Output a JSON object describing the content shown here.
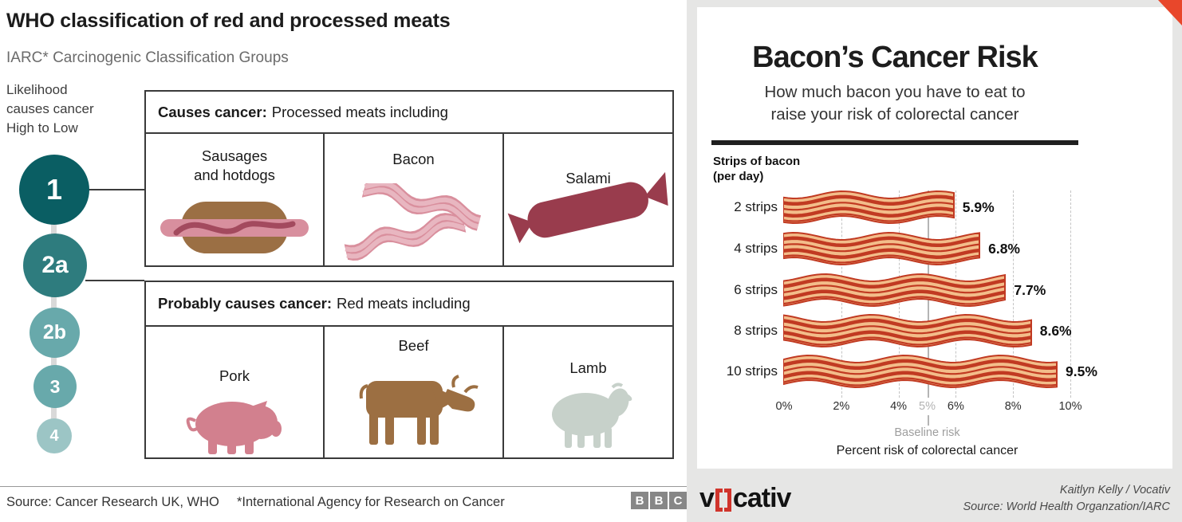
{
  "left_panel": {
    "title": "WHO classification of red and processed meats",
    "subtitle": "IARC* Carcinogenic Classification Groups",
    "likelihood_note": "Likelihood\ncauses cancer\nHigh to Low",
    "groups": [
      "1",
      "2a",
      "2b",
      "3",
      "4"
    ],
    "boxes": [
      {
        "header_bold": "Causes cancer:",
        "header_rest": "Processed meats including",
        "cells": [
          {
            "label": "Sausages\nand hotdogs",
            "icon": "hotdog-icon"
          },
          {
            "label": "Bacon",
            "icon": "bacon-icon"
          },
          {
            "label": "Salami",
            "icon": "salami-icon"
          }
        ]
      },
      {
        "header_bold": "Probably causes cancer:",
        "header_rest": "Red meats including",
        "cells": [
          {
            "label": "Pork",
            "icon": "pig-icon"
          },
          {
            "label": "Beef",
            "icon": "cow-icon"
          },
          {
            "label": "Lamb",
            "icon": "sheep-icon"
          }
        ]
      }
    ],
    "footer": {
      "source": "Source: Cancer Research UK, WHO",
      "note": "*International Agency for Research on Cancer",
      "logo_letters": [
        "B",
        "B",
        "C"
      ]
    }
  },
  "right_panel": {
    "title": "Bacon’s Cancer Risk",
    "subtitle": "How much bacon you have to eat to\nraise your risk of colorectal cancer",
    "logo_text_v": "v",
    "logo_text_rest": "cativ",
    "credit_line1": "Kaitlyn Kelly / Vocativ",
    "credit_line2": "Source: World Health Organzation/IARC"
  },
  "colors": {
    "accent_red": "#e8472b",
    "vocativ_red": "#d0342c",
    "bacon_fill": "#f3bd8a",
    "bacon_stripe": "#c13a22",
    "pink_bacon_fill": "#d98f9d",
    "pink_bacon_stripe": "#e8b6c0",
    "baseline_gray": "#b5b5b5",
    "group_colors": [
      "#0a5e63",
      "#2e7c7e",
      "#68a9ab",
      "#68a9ab",
      "#9cc5c5"
    ]
  },
  "chart_data": {
    "type": "bar",
    "orientation": "horizontal",
    "title": "Bacon’s Cancer Risk",
    "subtitle": "How much bacon you have to eat to raise your risk of colorectal cancer",
    "series_label": "Strips of bacon\n(per day)",
    "categories": [
      "2 strips",
      "4 strips",
      "6 strips",
      "8 strips",
      "10 strips"
    ],
    "values": [
      5.9,
      6.8,
      7.7,
      8.6,
      9.5
    ],
    "value_labels": [
      "5.9%",
      "6.8%",
      "7.7%",
      "8.6%",
      "9.5%"
    ],
    "xlabel": "Percent risk of colorectal cancer",
    "xlim": [
      0,
      10
    ],
    "x_ticks": [
      {
        "value": 0,
        "label": "0%"
      },
      {
        "value": 2,
        "label": "2%"
      },
      {
        "value": 4,
        "label": "4%"
      },
      {
        "value": 5,
        "label": "5%",
        "muted": true
      },
      {
        "value": 6,
        "label": "6%"
      },
      {
        "value": 8,
        "label": "8%"
      },
      {
        "value": 10,
        "label": "10%"
      }
    ],
    "baseline": {
      "value": 5,
      "label": "Baseline risk"
    },
    "grid": "dashed-vertical",
    "legend": "none"
  }
}
